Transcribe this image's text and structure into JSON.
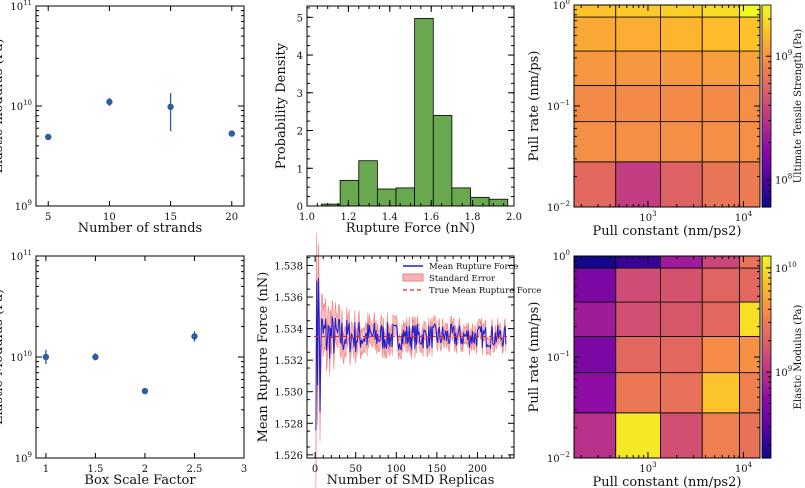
{
  "colors": {
    "marker": "#2f5ba0",
    "bar_fill": "#6aa84f",
    "line_blue": "#1f1fd0",
    "band_red": "#f08080",
    "dash_red": "#d62728"
  },
  "chart_data": [
    {
      "id": "strands",
      "type": "scatter",
      "xlabel": "Number of strands",
      "ylabel": "Elastic modulus (Pa)",
      "xlim": [
        4,
        21
      ],
      "ylim": [
        1000000000.0,
        100000000000.0
      ],
      "yscale": "log",
      "xticks": [
        5,
        10,
        15,
        20
      ],
      "yticks": [
        {
          "v": 1000000000.0,
          "base": "10",
          "exp": "9"
        },
        {
          "v": 10000000000.0,
          "base": "10",
          "exp": "10"
        },
        {
          "v": 100000000000.0,
          "base": "10",
          "exp": "11"
        }
      ],
      "points": [
        {
          "x": 5,
          "y": 4900000000.0,
          "lo": 4600000000.0,
          "hi": 5200000000.0
        },
        {
          "x": 10,
          "y": 11000000000.0,
          "lo": 10000000000.0,
          "hi": 12000000000.0
        },
        {
          "x": 15,
          "y": 9800000000.0,
          "lo": 5600000000.0,
          "hi": 13500000000.0
        },
        {
          "x": 20,
          "y": 5300000000.0,
          "lo": 5000000000.0,
          "hi": 5600000000.0
        }
      ]
    },
    {
      "id": "hist",
      "type": "bar",
      "xlabel": "Rupture Force (nN)",
      "ylabel": "Probability Density",
      "xlim": [
        1.0,
        2.0
      ],
      "ylim": [
        0,
        5.3
      ],
      "xticks": [
        1.0,
        1.2,
        1.4,
        1.6,
        1.8,
        2.0
      ],
      "yticks": [
        0,
        1,
        2,
        3,
        4,
        5
      ],
      "bin_edges": [
        1.07,
        1.16,
        1.25,
        1.34,
        1.43,
        1.52,
        1.61,
        1.7,
        1.79,
        1.88,
        1.97
      ],
      "values": [
        0.05,
        0.68,
        1.2,
        0.45,
        0.48,
        4.97,
        2.4,
        0.48,
        0.23,
        0.18
      ]
    },
    {
      "id": "uts_heat",
      "type": "heatmap",
      "xlabel": "Pull constant (nm/ps2)",
      "ylabel": "Pull rate (nm/ps)",
      "xscale": "log",
      "yscale": "log",
      "xlim": [
        168.0,
        14900.0
      ],
      "ylim": [
        0.01,
        1.0
      ],
      "xticks": [
        {
          "v": 1000.0,
          "base": "10",
          "exp": "3"
        },
        {
          "v": 10000.0,
          "base": "10",
          "exp": "4"
        }
      ],
      "yticks": [
        {
          "v": 0.01,
          "base": "10",
          "exp": "−2"
        },
        {
          "v": 0.1,
          "base": "10",
          "exp": "−1"
        },
        {
          "v": 1.0,
          "base": "10",
          "exp": "0"
        }
      ],
      "colorbar_label": "Ultimate Tensile Strength (Pa)",
      "colorbar_range": [
        60000000.0,
        2600000000.0
      ],
      "colorbar_ticks": [
        {
          "v": 100000000.0,
          "base": "10",
          "exp": "8"
        },
        {
          "v": 1000000000.0,
          "base": "10",
          "exp": "9"
        }
      ],
      "x_edges": [
        168.0,
        460.0,
        1350.0,
        3700.0,
        9100.0,
        14900.0
      ],
      "y_edges": [
        0.01,
        0.028,
        0.07,
        0.16,
        0.35,
        0.76,
        1.0
      ],
      "cells": [
        [
          600000000.0,
          350000000.0,
          550000000.0,
          700000000.0,
          750000000.0
        ],
        [
          950000000.0,
          950000000.0,
          950000000.0,
          950000000.0,
          950000000.0
        ],
        [
          900000000.0,
          900000000.0,
          900000000.0,
          900000000.0,
          950000000.0
        ],
        [
          1050000000.0,
          1050000000.0,
          1050000000.0,
          1100000000.0,
          1150000000.0
        ],
        [
          1250000000.0,
          1300000000.0,
          1400000000.0,
          1500000000.0,
          1600000000.0
        ],
        [
          1600000000.0,
          1700000000.0,
          1800000000.0,
          2000000000.0,
          2600000000.0
        ]
      ]
    },
    {
      "id": "boxscale",
      "type": "scatter",
      "xlabel": "Box Scale Factor",
      "ylabel": "Elastic Modulus (Pa)",
      "xlim": [
        0.9,
        3.0
      ],
      "ylim": [
        1000000000.0,
        100000000000.0
      ],
      "yscale": "log",
      "xticks": [
        1.0,
        1.5,
        2.0,
        2.5,
        3.0
      ],
      "yticks": [
        {
          "v": 1000000000.0,
          "base": "10",
          "exp": "9"
        },
        {
          "v": 10000000000.0,
          "base": "10",
          "exp": "10"
        },
        {
          "v": 100000000000.0,
          "base": "10",
          "exp": "11"
        }
      ],
      "points": [
        {
          "x": 1.0,
          "y": 10000000000.0,
          "lo": 8500000000.0,
          "hi": 11800000000.0
        },
        {
          "x": 1.5,
          "y": 10000000000.0,
          "lo": 9300000000.0,
          "hi": 10900000000.0
        },
        {
          "x": 2.0,
          "y": 4600000000.0,
          "lo": 4350000000.0,
          "hi": 4900000000.0
        },
        {
          "x": 2.5,
          "y": 16000000000.0,
          "lo": 14200000000.0,
          "hi": 18000000000.0
        }
      ]
    },
    {
      "id": "convergence",
      "type": "line",
      "xlabel": "Number of SMD Replicas",
      "ylabel": "Mean Rupture Force (nN)",
      "xlim": [
        -10,
        245
      ],
      "ylim": [
        1.5258,
        1.5386
      ],
      "xticks": [
        0,
        50,
        100,
        150,
        200
      ],
      "yticks": [
        1.526,
        1.528,
        1.53,
        1.532,
        1.534,
        1.536,
        1.538
      ],
      "n_replicas": 235,
      "true_mean": 1.5335,
      "legend": {
        "position": "top-right",
        "mean_label": "Mean Rupture Force",
        "band_label": "Standard Error",
        "true_label": "True Mean Rupture Force"
      }
    },
    {
      "id": "em_heat",
      "type": "heatmap",
      "xlabel": "Pull constant (nm/ps2)",
      "ylabel": "Pull rate (nm/ps)",
      "xscale": "log",
      "yscale": "log",
      "xlim": [
        168.0,
        14900.0
      ],
      "ylim": [
        0.01,
        1.0
      ],
      "xticks": [
        {
          "v": 1000.0,
          "base": "10",
          "exp": "3"
        },
        {
          "v": 10000.0,
          "base": "10",
          "exp": "4"
        }
      ],
      "yticks": [
        {
          "v": 0.01,
          "base": "10",
          "exp": "−2"
        },
        {
          "v": 0.1,
          "base": "10",
          "exp": "−1"
        },
        {
          "v": 1.0,
          "base": "10",
          "exp": "0"
        }
      ],
      "colorbar_label": "Elastic Modulus (Pa)",
      "colorbar_range": [
        150000000.0,
        13000000000.0
      ],
      "colorbar_ticks": [
        {
          "v": 1000000000.0,
          "base": "10",
          "exp": "9"
        },
        {
          "v": 10000000000.0,
          "base": "10",
          "exp": "10"
        }
      ],
      "x_edges": [
        168.0,
        460.0,
        1350.0,
        3700.0,
        9100.0,
        14900.0
      ],
      "y_edges": [
        0.01,
        0.028,
        0.07,
        0.16,
        0.35,
        0.76,
        1.0
      ],
      "cells": [
        [
          1000000000.0,
          11000000000.0,
          1600000000.0,
          3200000000.0,
          2600000000.0
        ],
        [
          550000000.0,
          2800000000.0,
          2600000000.0,
          7500000000.0,
          3200000000.0
        ],
        [
          450000000.0,
          2300000000.0,
          2300000000.0,
          3800000000.0,
          4000000000.0
        ],
        [
          700000000.0,
          1600000000.0,
          1800000000.0,
          2300000000.0,
          10000000000.0
        ],
        [
          450000000.0,
          1500000000.0,
          1700000000.0,
          2200000000.0,
          2300000000.0
        ],
        [
          160000000.0,
          220000000.0,
          700000000.0,
          1400000000.0,
          2700000000.0
        ]
      ]
    }
  ]
}
